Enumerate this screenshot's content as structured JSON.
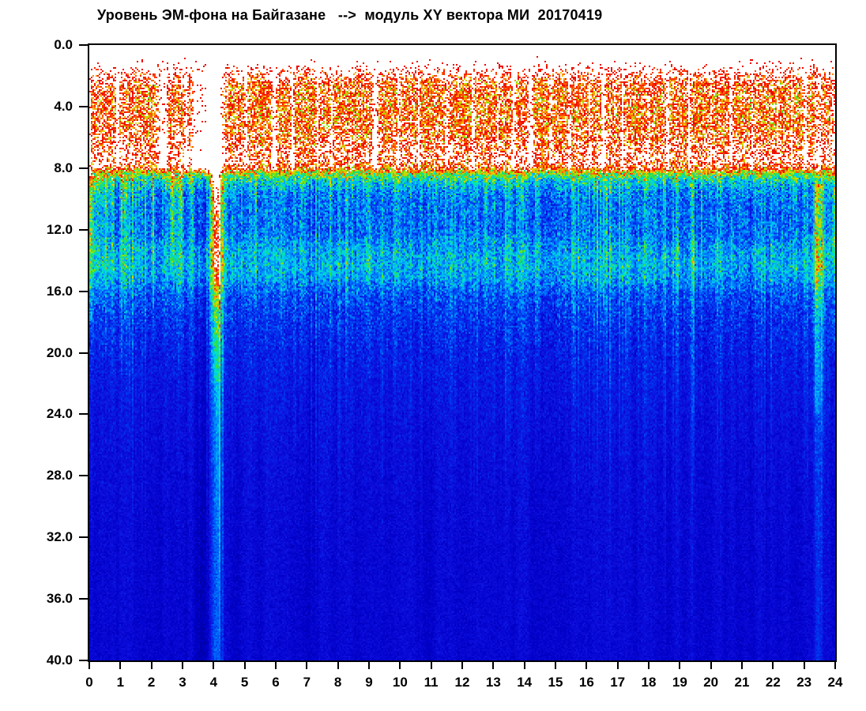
{
  "chart_data": {
    "type": "heatmap",
    "title": "Уровень ЭМ-фона на Байгазане   -->  модуль XY вектора МИ  20170419",
    "date_label": "20170419",
    "grid": false,
    "legend": "none",
    "x_axis": {
      "range": [
        0,
        24
      ],
      "ticks": [
        "0",
        "1",
        "2",
        "3",
        "4",
        "5",
        "6",
        "7",
        "8",
        "9",
        "10",
        "11",
        "12",
        "13",
        "14",
        "15",
        "16",
        "17",
        "18",
        "19",
        "20",
        "21",
        "22",
        "23",
        "24"
      ]
    },
    "y_axis": {
      "range": [
        0,
        40
      ],
      "increases_downward": true,
      "ticks": [
        "0.0",
        "4.0",
        "8.0",
        "12.0",
        "16.0",
        "20.0",
        "24.0",
        "28.0",
        "32.0",
        "36.0",
        "40.0"
      ]
    },
    "colormap": {
      "over_color": "#FFFFFF",
      "stops": [
        [
          0.0,
          "#00009C"
        ],
        [
          0.1,
          "#0000C8"
        ],
        [
          0.2,
          "#0E0EDC"
        ],
        [
          0.32,
          "#0038F0"
        ],
        [
          0.44,
          "#0086FF"
        ],
        [
          0.53,
          "#00C8F2"
        ],
        [
          0.6,
          "#00E6BE"
        ],
        [
          0.67,
          "#2ADC50"
        ],
        [
          0.73,
          "#8CE400"
        ],
        [
          0.79,
          "#E6DA00"
        ],
        [
          0.85,
          "#FF9400"
        ],
        [
          0.91,
          "#FF3C00"
        ],
        [
          1.0,
          "#E80000"
        ]
      ]
    },
    "intensity_profile": [
      [
        0,
        1.35
      ],
      [
        1.3,
        1.18
      ],
      [
        1.9,
        1.04
      ],
      [
        2.6,
        0.95
      ],
      [
        4.2,
        0.92
      ],
      [
        5.6,
        0.94
      ],
      [
        6.9,
        1.0
      ],
      [
        7.5,
        1.02
      ],
      [
        8.0,
        0.93
      ],
      [
        8.35,
        0.74
      ],
      [
        8.8,
        0.56
      ],
      [
        9.5,
        0.44
      ],
      [
        10.5,
        0.4
      ],
      [
        12.2,
        0.4
      ],
      [
        13.3,
        0.48
      ],
      [
        14.3,
        0.5
      ],
      [
        15.2,
        0.46
      ],
      [
        16.2,
        0.35
      ],
      [
        18,
        0.29
      ],
      [
        20,
        0.25
      ],
      [
        24,
        0.21
      ],
      [
        28,
        0.18
      ],
      [
        33,
        0.16
      ],
      [
        40,
        0.15
      ]
    ],
    "noise_amplitude": [
      [
        0,
        0.26
      ],
      [
        8,
        0.26
      ],
      [
        9,
        0.22
      ],
      [
        16,
        0.2
      ],
      [
        22,
        0.1
      ],
      [
        40,
        0.07
      ]
    ],
    "night_activity": {
      "end_hour": 3.35,
      "step": 0.13,
      "burst_boost": 0.24,
      "gap_boost": 0.3,
      "quiet_window": [
        3.28,
        3.97
      ]
    },
    "white_gaps": [
      [
        2.45,
        0.04,
        0.26
      ],
      [
        5.05,
        0.03,
        0.22
      ],
      [
        5.95,
        0.05,
        0.26
      ],
      [
        6.55,
        0.04,
        0.24
      ],
      [
        7.35,
        0.03,
        0.22
      ],
      [
        7.8,
        0.03,
        0.2
      ],
      [
        9.2,
        0.06,
        0.3
      ],
      [
        9.95,
        0.03,
        0.22
      ],
      [
        10.6,
        0.03,
        0.2
      ],
      [
        11.5,
        0.04,
        0.22
      ],
      [
        12.35,
        0.03,
        0.2
      ],
      [
        13.15,
        0.03,
        0.2
      ],
      [
        13.65,
        0.05,
        0.26
      ],
      [
        14.2,
        0.06,
        0.28
      ],
      [
        14.85,
        0.03,
        0.2
      ],
      [
        15.45,
        0.03,
        0.2
      ],
      [
        16.1,
        0.03,
        0.2
      ],
      [
        16.55,
        0.05,
        0.26
      ],
      [
        17.15,
        0.03,
        0.22
      ],
      [
        18.0,
        0.03,
        0.18
      ],
      [
        18.6,
        0.04,
        0.22
      ],
      [
        19.3,
        0.03,
        0.2
      ],
      [
        20.0,
        0.03,
        0.18
      ],
      [
        20.65,
        0.04,
        0.24
      ],
      [
        21.35,
        0.03,
        0.22
      ],
      [
        22.15,
        0.03,
        0.2
      ],
      [
        22.6,
        0.03,
        0.2
      ],
      [
        23.05,
        0.04,
        0.22
      ]
    ],
    "events": [
      {
        "t": 4.08,
        "sigma": 0.13,
        "ranges": [
          [
            0,
            11,
            0.5
          ],
          [
            11,
            14.5,
            0.42
          ],
          [
            14.5,
            17,
            0.33
          ],
          [
            17,
            22,
            0.27
          ],
          [
            22,
            40,
            0.2
          ]
        ]
      },
      {
        "t": 23.45,
        "sigma": 0.1,
        "ranges": [
          [
            2,
            9,
            0.12
          ],
          [
            9,
            13,
            0.38
          ],
          [
            13,
            17,
            0.32
          ],
          [
            17,
            24,
            0.26
          ],
          [
            24,
            40,
            0.16
          ]
        ]
      },
      {
        "t": 0.02,
        "sigma": 0.06,
        "ranges": [
          [
            8,
            13,
            0.3
          ],
          [
            13,
            18,
            0.15
          ]
        ]
      },
      {
        "t": 23.97,
        "sigma": 0.07,
        "ranges": [
          [
            2,
            9,
            0.12
          ],
          [
            9,
            14,
            0.22
          ],
          [
            14,
            20,
            0.1
          ]
        ]
      }
    ],
    "stripes": [
      [
        0.3,
        8.5,
        16,
        0.18,
        0.015
      ],
      [
        0.55,
        9,
        20,
        0.16,
        0.02
      ],
      [
        1.15,
        9,
        18,
        0.17,
        0.02
      ],
      [
        1.6,
        9,
        16,
        0.13,
        0.015
      ],
      [
        2.05,
        9,
        17,
        0.18,
        0.02
      ],
      [
        2.65,
        8,
        15,
        0.26,
        0.04
      ],
      [
        2.95,
        8,
        16,
        0.24,
        0.03
      ],
      [
        3.15,
        8,
        14,
        0.2,
        0.02
      ],
      [
        4.2,
        9,
        40,
        0.28,
        0.012
      ],
      [
        4.3,
        9,
        40,
        0.26,
        0.012
      ],
      [
        4.47,
        9,
        40,
        0.18,
        0.01
      ],
      [
        5.35,
        8.5,
        17,
        0.22,
        0.025
      ],
      [
        5.65,
        9,
        25,
        0.16,
        0.015
      ],
      [
        6.15,
        9,
        20,
        0.13,
        0.015
      ],
      [
        9.55,
        9,
        18,
        0.1,
        0.012
      ],
      [
        13.85,
        9,
        16,
        0.09,
        0.012
      ],
      [
        17.65,
        12,
        22,
        0.11,
        0.012
      ],
      [
        18.35,
        12,
        26,
        0.13,
        0.012
      ],
      [
        18.95,
        12,
        24,
        0.11,
        0.01
      ],
      [
        19.45,
        12,
        28,
        0.11,
        0.01
      ],
      [
        20.15,
        12,
        22,
        0.09,
        0.01
      ],
      [
        21.05,
        12,
        20,
        0.09,
        0.01
      ],
      [
        21.95,
        12,
        24,
        0.11,
        0.012
      ],
      [
        23.1,
        10,
        30,
        0.13,
        0.012
      ],
      [
        23.58,
        9,
        40,
        0.2,
        0.015
      ]
    ],
    "dark_bands": [
      [
        3.6,
        0.28,
        0.06,
        8.5
      ],
      [
        4.78,
        0.3,
        0.07,
        8.5
      ],
      [
        7.05,
        0.18,
        0.03,
        9
      ],
      [
        11.0,
        0.3,
        0.02,
        9
      ],
      [
        19.85,
        0.3,
        0.035,
        12
      ],
      [
        20.9,
        0.25,
        0.03,
        12
      ]
    ],
    "render_seed": 20170419
  }
}
